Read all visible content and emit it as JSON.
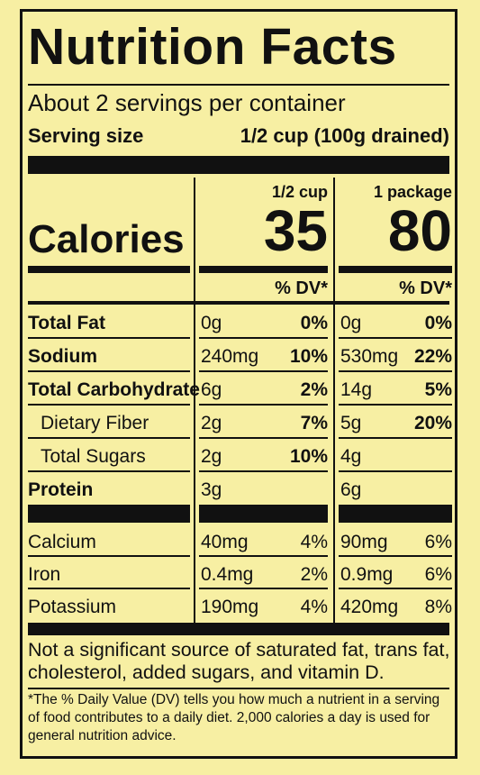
{
  "title": "Nutrition Facts",
  "servings": "About 2 servings per container",
  "serving_size": {
    "label": "Serving size",
    "value": "1/2 cup (100g drained)"
  },
  "calories_label": "Calories",
  "columns": [
    {
      "header": "1/2 cup",
      "calories": "35",
      "dv_header": "% DV*"
    },
    {
      "header": "1 package",
      "calories": "80",
      "dv_header": "% DV*"
    }
  ],
  "nutrients": [
    {
      "name": "Total Fat",
      "bold": true,
      "indent": false,
      "values": [
        [
          "0g",
          "0%"
        ],
        [
          "0g",
          "0%"
        ]
      ]
    },
    {
      "name": "Sodium",
      "bold": true,
      "indent": false,
      "values": [
        [
          "240mg",
          "10%"
        ],
        [
          "530mg",
          "22%"
        ]
      ]
    },
    {
      "name": "Total Carbohydrate",
      "bold": true,
      "indent": false,
      "values": [
        [
          "6g",
          "2%"
        ],
        [
          "14g",
          "5%"
        ]
      ]
    },
    {
      "name": "Dietary Fiber",
      "bold": false,
      "indent": true,
      "values": [
        [
          "2g",
          "7%"
        ],
        [
          "5g",
          "20%"
        ]
      ]
    },
    {
      "name": "Total Sugars",
      "bold": false,
      "indent": true,
      "values": [
        [
          "2g",
          "10%"
        ],
        [
          "4g"
        ]
      ]
    },
    {
      "name": "Protein",
      "bold": true,
      "indent": false,
      "values": [
        [
          "3g"
        ],
        [
          "6g"
        ]
      ]
    }
  ],
  "minerals": [
    {
      "name": "Calcium",
      "values": [
        [
          "40mg",
          "4%"
        ],
        [
          "90mg",
          "6%"
        ]
      ]
    },
    {
      "name": "Iron",
      "values": [
        [
          "0.4mg",
          "2%"
        ],
        [
          "0.9mg",
          "6%"
        ]
      ]
    },
    {
      "name": "Potassium",
      "values": [
        [
          "190mg",
          "4%"
        ],
        [
          "420mg",
          "8%"
        ]
      ]
    }
  ],
  "footnotes": [
    "Not a significant source of saturated fat, trans fat, cholesterol, added sugars, and vitamin D.",
    "*The % Daily Value (DV) tells you how much a nutrient in a serving of food contributes to a daily diet. 2,000 calories a day is used for general nutrition advice."
  ]
}
